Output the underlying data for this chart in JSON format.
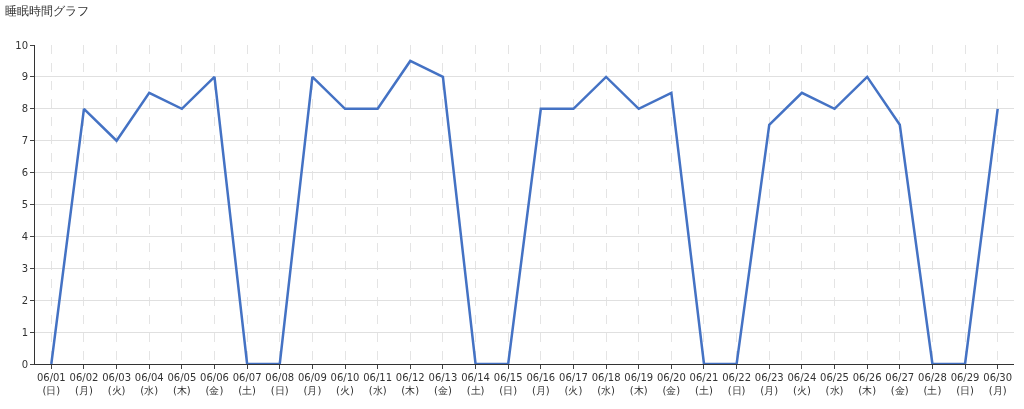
{
  "chart_data": {
    "type": "line",
    "title": "睡眠時間グラフ",
    "categories": [
      "06/01\n(日)",
      "06/02\n(月)",
      "06/03\n(火)",
      "06/04\n(水)",
      "06/05\n(木)",
      "06/06\n(金)",
      "06/07\n(土)",
      "06/08\n(日)",
      "06/09\n(月)",
      "06/10\n(火)",
      "06/11\n(水)",
      "06/12\n(木)",
      "06/13\n(金)",
      "06/14\n(土)",
      "06/15\n(日)",
      "06/16\n(月)",
      "06/17\n(火)",
      "06/18\n(水)",
      "06/19\n(木)",
      "06/20\n(金)",
      "06/21\n(土)",
      "06/22\n(日)",
      "06/23\n(月)",
      "06/24\n(火)",
      "06/25\n(水)",
      "06/26\n(木)",
      "06/27\n(金)",
      "06/28\n(土)",
      "06/29\n(日)",
      "06/30\n(月)"
    ],
    "series": [
      {
        "color": "#4472c4",
        "values": [
          0,
          8,
          7,
          8.5,
          8,
          9,
          0,
          0,
          9,
          8,
          8,
          9.5,
          9,
          0,
          0,
          8,
          8,
          9,
          8,
          8.5,
          0,
          0,
          7.5,
          8.5,
          8,
          9,
          7.5,
          0,
          0,
          8
        ]
      }
    ],
    "ylim": [
      0,
      10
    ],
    "yticks": [
      0,
      1,
      2,
      3,
      4,
      5,
      6,
      7,
      8,
      9,
      10
    ],
    "grid": true,
    "line_style": "solid"
  }
}
